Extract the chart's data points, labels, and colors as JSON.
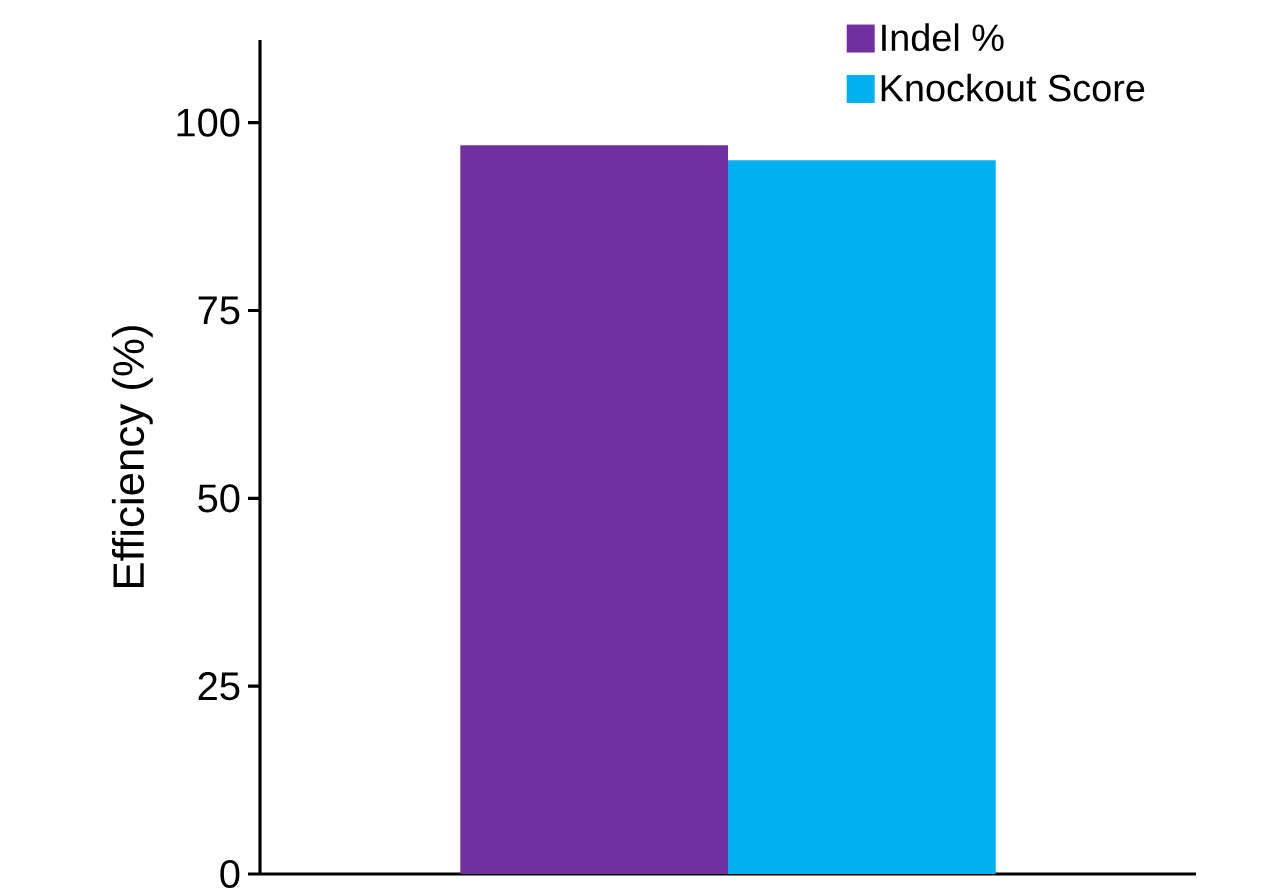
{
  "chart_data": {
    "type": "bar",
    "ylabel": "Efficiency (%)",
    "categories": [
      null
    ],
    "series": [
      {
        "name": "Indel %",
        "color": "#7030a0",
        "values": [
          97
        ]
      },
      {
        "name": "Knockout Score",
        "color": "#00b0f0",
        "values": [
          95
        ]
      }
    ],
    "ylim": [
      0,
      111
    ],
    "yticks": [
      0,
      25,
      50,
      75,
      100
    ],
    "legend": "top right",
    "tick_labels": "y"
  }
}
